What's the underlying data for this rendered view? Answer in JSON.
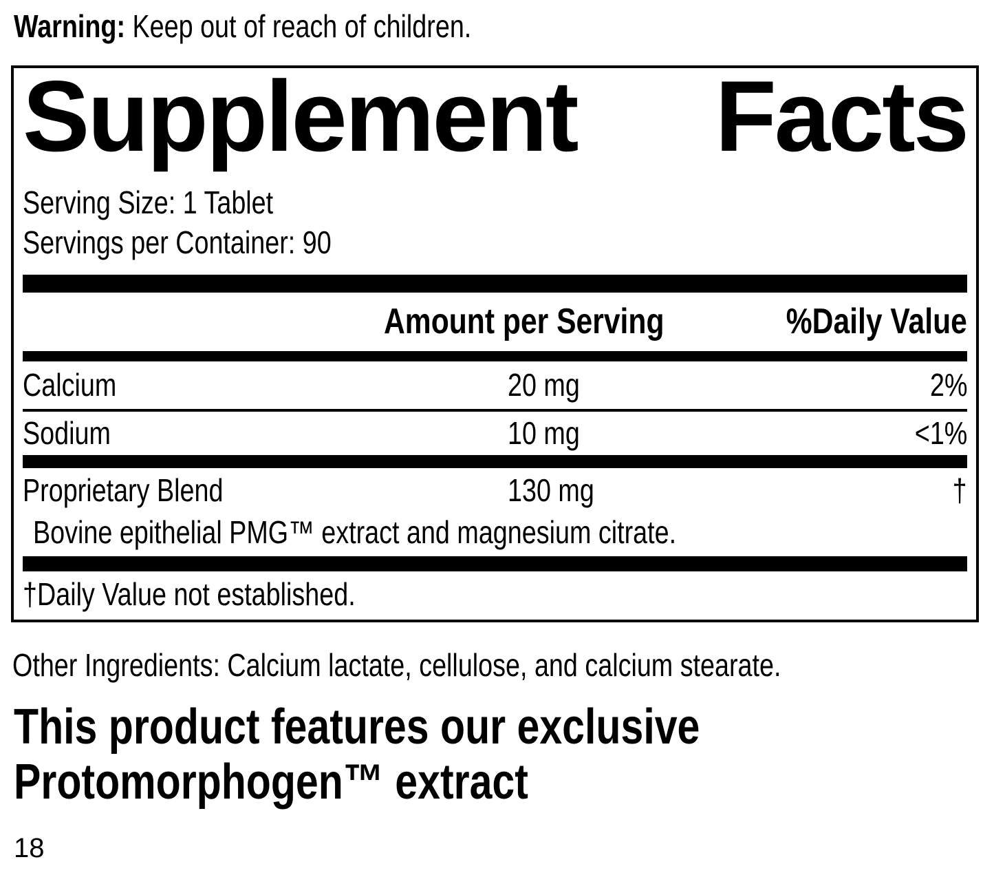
{
  "colors": {
    "ink": "#000000",
    "background": "#ffffff"
  },
  "warning": {
    "label": "Warning:",
    "text": " Keep out of reach of children."
  },
  "panel": {
    "title": {
      "word1": "Supplement",
      "word2": "Facts"
    },
    "serving_size": "Serving Size: 1 Tablet",
    "servings_per_container": "Servings per Container: 90",
    "header": {
      "amount": "Amount per Serving",
      "daily_value": "%Daily Value"
    },
    "rows": [
      {
        "name": "Calcium",
        "amount": "20 mg",
        "daily_value": "2%"
      },
      {
        "name": "Sodium",
        "amount": "10 mg",
        "daily_value": "<1%"
      },
      {
        "name": "Proprietary Blend",
        "amount": "130 mg",
        "daily_value": "†",
        "description": "Bovine epithelial PMG™ extract and magnesium citrate."
      }
    ],
    "footnote": "†Daily Value not established."
  },
  "other_ingredients": "Other Ingredients: Calcium lactate, cellulose, and calcium stearate.",
  "feature_note": {
    "line1": "This product features our exclusive",
    "line2": "Protomorphogen™ extract"
  },
  "page_number": "18"
}
